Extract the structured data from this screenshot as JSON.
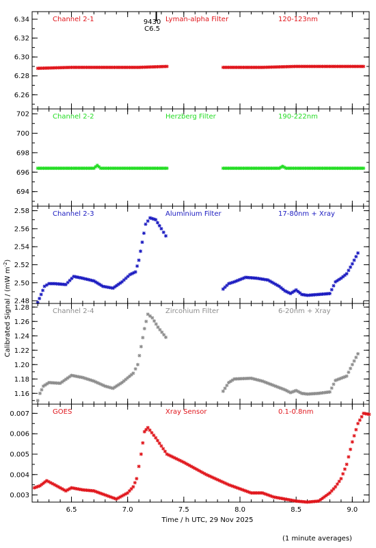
{
  "chart_data": {
    "type": "scatter",
    "xlabel": "Time / h UTC, 29 Nov 2025",
    "ylabel": "Calibrated Signal / (mW m",
    "ylabel_sup": "-2",
    "ylabel_close": ")",
    "footnote": "(1 minute averages)",
    "xlim": [
      6.15,
      9.15
    ],
    "xticks": [
      6.5,
      7.0,
      7.5,
      8.0,
      8.5,
      9.0
    ],
    "xtick_labels": [
      "6.5",
      "7.0",
      "7.5",
      "8.0",
      "8.5",
      "9.0"
    ],
    "annotation": {
      "x": 7.17,
      "line1": "9430",
      "line2": "C6.5"
    },
    "colors": {
      "red": "#e0141a",
      "green": "#22dd22",
      "blue": "#1a1ac0",
      "gray": "#8c8c8c"
    },
    "panels": [
      {
        "channel": "Channel 2-1",
        "filter": "Lyman-alpha Filter",
        "band": "120-123nm",
        "color": "#e0141a",
        "ylim": [
          6.245,
          6.348
        ],
        "yticks": [
          6.26,
          6.28,
          6.3,
          6.32,
          6.34
        ],
        "ytick_labels": [
          "6.26",
          "6.28",
          "6.30",
          "6.32",
          "6.34"
        ],
        "segments": [
          {
            "x": [
              6.2,
              6.5,
              6.8,
              7.1,
              7.35
            ],
            "y": [
              6.288,
              6.289,
              6.289,
              6.289,
              6.29
            ]
          },
          {
            "x": [
              7.85,
              8.2,
              8.5,
              8.8,
              9.1
            ],
            "y": [
              6.289,
              6.289,
              6.29,
              6.29,
              6.29
            ]
          }
        ]
      },
      {
        "channel": "Channel 2-2",
        "filter": "Herzberg Filter",
        "band": "190-222nm",
        "color": "#22dd22",
        "ylim": [
          692.5,
          702.5
        ],
        "yticks": [
          694,
          696,
          698,
          700,
          702
        ],
        "ytick_labels": [
          "694",
          "696",
          "698",
          "700",
          "702"
        ],
        "segments": [
          {
            "x": [
              6.2,
              6.5,
              6.7,
              6.73,
              6.76,
              7.0,
              7.35
            ],
            "y": [
              696.4,
              696.4,
              696.4,
              696.7,
              696.4,
              696.4,
              696.4
            ]
          },
          {
            "x": [
              7.85,
              8.2,
              8.35,
              8.38,
              8.41,
              8.7,
              9.1
            ],
            "y": [
              696.4,
              696.4,
              696.4,
              696.6,
              696.4,
              696.4,
              696.4
            ]
          }
        ]
      },
      {
        "channel": "Channel 2-3",
        "filter": "Aluminium Filter",
        "band": "17-80nm + Xray",
        "color": "#1a1ac0",
        "ylim": [
          2.477,
          2.585
        ],
        "yticks": [
          2.48,
          2.5,
          2.52,
          2.54,
          2.56,
          2.58
        ],
        "ytick_labels": [
          "2.48",
          "2.50",
          "2.52",
          "2.54",
          "2.56",
          "2.58"
        ],
        "segments": [
          {
            "x": [
              6.2,
              6.23,
              6.26,
              6.3,
              6.35,
              6.45,
              6.52,
              6.6,
              6.7,
              6.78,
              6.87,
              6.95,
              7.02,
              7.07,
              7.1,
              7.13,
              7.16,
              7.2,
              7.25,
              7.3,
              7.34
            ],
            "y": [
              2.478,
              2.487,
              2.496,
              2.499,
              2.499,
              2.498,
              2.507,
              2.505,
              2.502,
              2.496,
              2.494,
              2.501,
              2.509,
              2.512,
              2.525,
              2.545,
              2.565,
              2.572,
              2.57,
              2.56,
              2.552
            ]
          },
          {
            "x": [
              7.85,
              7.9,
              7.95,
              8.05,
              8.15,
              8.25,
              8.35,
              8.4,
              8.45,
              8.5,
              8.55,
              8.6,
              8.7,
              8.8,
              8.85,
              8.9,
              8.95,
              9.0,
              9.05
            ],
            "y": [
              2.493,
              2.499,
              2.501,
              2.506,
              2.505,
              2.503,
              2.496,
              2.491,
              2.488,
              2.492,
              2.487,
              2.486,
              2.487,
              2.488,
              2.501,
              2.505,
              2.51,
              2.521,
              2.533
            ]
          }
        ]
      },
      {
        "channel": "Channel 2-4",
        "filter": "Zirconium Filter",
        "band": "6-20nm + Xray",
        "color": "#8c8c8c",
        "ylim": [
          1.145,
          1.285
        ],
        "yticks": [
          1.16,
          1.18,
          1.2,
          1.22,
          1.24,
          1.26,
          1.28
        ],
        "ytick_labels": [
          "1.16",
          "1.18",
          "1.20",
          "1.22",
          "1.24",
          "1.26",
          "1.28"
        ],
        "segments": [
          {
            "x": [
              6.2,
              6.22,
              6.25,
              6.3,
              6.4,
              6.5,
              6.6,
              6.7,
              6.8,
              6.87,
              6.95,
              7.05,
              7.09,
              7.12,
              7.15,
              7.18,
              7.22,
              7.27,
              7.34
            ],
            "y": [
              1.15,
              1.16,
              1.17,
              1.175,
              1.174,
              1.185,
              1.182,
              1.177,
              1.17,
              1.167,
              1.175,
              1.188,
              1.2,
              1.225,
              1.25,
              1.27,
              1.265,
              1.252,
              1.238
            ]
          },
          {
            "x": [
              7.85,
              7.9,
              7.95,
              8.1,
              8.2,
              8.3,
              8.4,
              8.45,
              8.5,
              8.55,
              8.6,
              8.7,
              8.8,
              8.85,
              8.9,
              8.95,
              9.0,
              9.05
            ],
            "y": [
              1.163,
              1.175,
              1.18,
              1.181,
              1.177,
              1.171,
              1.165,
              1.161,
              1.164,
              1.16,
              1.159,
              1.16,
              1.162,
              1.178,
              1.181,
              1.184,
              1.2,
              1.215
            ]
          }
        ]
      },
      {
        "channel": "GOES",
        "filter": "Xray Sensor",
        "band": "0.1-0.8nm",
        "color": "#e0141a",
        "ylim": [
          0.00265,
          0.00745
        ],
        "yticks": [
          0.003,
          0.004,
          0.005,
          0.006,
          0.007
        ],
        "ytick_labels": [
          "0.003",
          "0.004",
          "0.005",
          "0.006",
          "0.007"
        ],
        "segments": [
          {
            "x": [
              6.17,
              6.22,
              6.28,
              6.35,
              6.45,
              6.5,
              6.6,
              6.7,
              6.8,
              6.9,
              7.0,
              7.05,
              7.08,
              7.12,
              7.15,
              7.18,
              7.25,
              7.35,
              7.5,
              7.7,
              7.9,
              8.0,
              8.1,
              8.2,
              8.3,
              8.4,
              8.5,
              8.6,
              8.7,
              8.75,
              8.8,
              8.85,
              8.9,
              8.95,
              9.0,
              9.05,
              9.1,
              9.15
            ],
            "y": [
              0.00335,
              0.00345,
              0.0037,
              0.0035,
              0.0032,
              0.00335,
              0.00325,
              0.0032,
              0.003,
              0.0028,
              0.0031,
              0.0034,
              0.0038,
              0.005,
              0.0061,
              0.0063,
              0.0058,
              0.005,
              0.0046,
              0.004,
              0.0035,
              0.0033,
              0.0031,
              0.0031,
              0.0029,
              0.0028,
              0.0027,
              0.00265,
              0.0027,
              0.0029,
              0.0031,
              0.0034,
              0.0038,
              0.0045,
              0.0056,
              0.0065,
              0.007,
              0.00695
            ]
          }
        ]
      }
    ]
  }
}
